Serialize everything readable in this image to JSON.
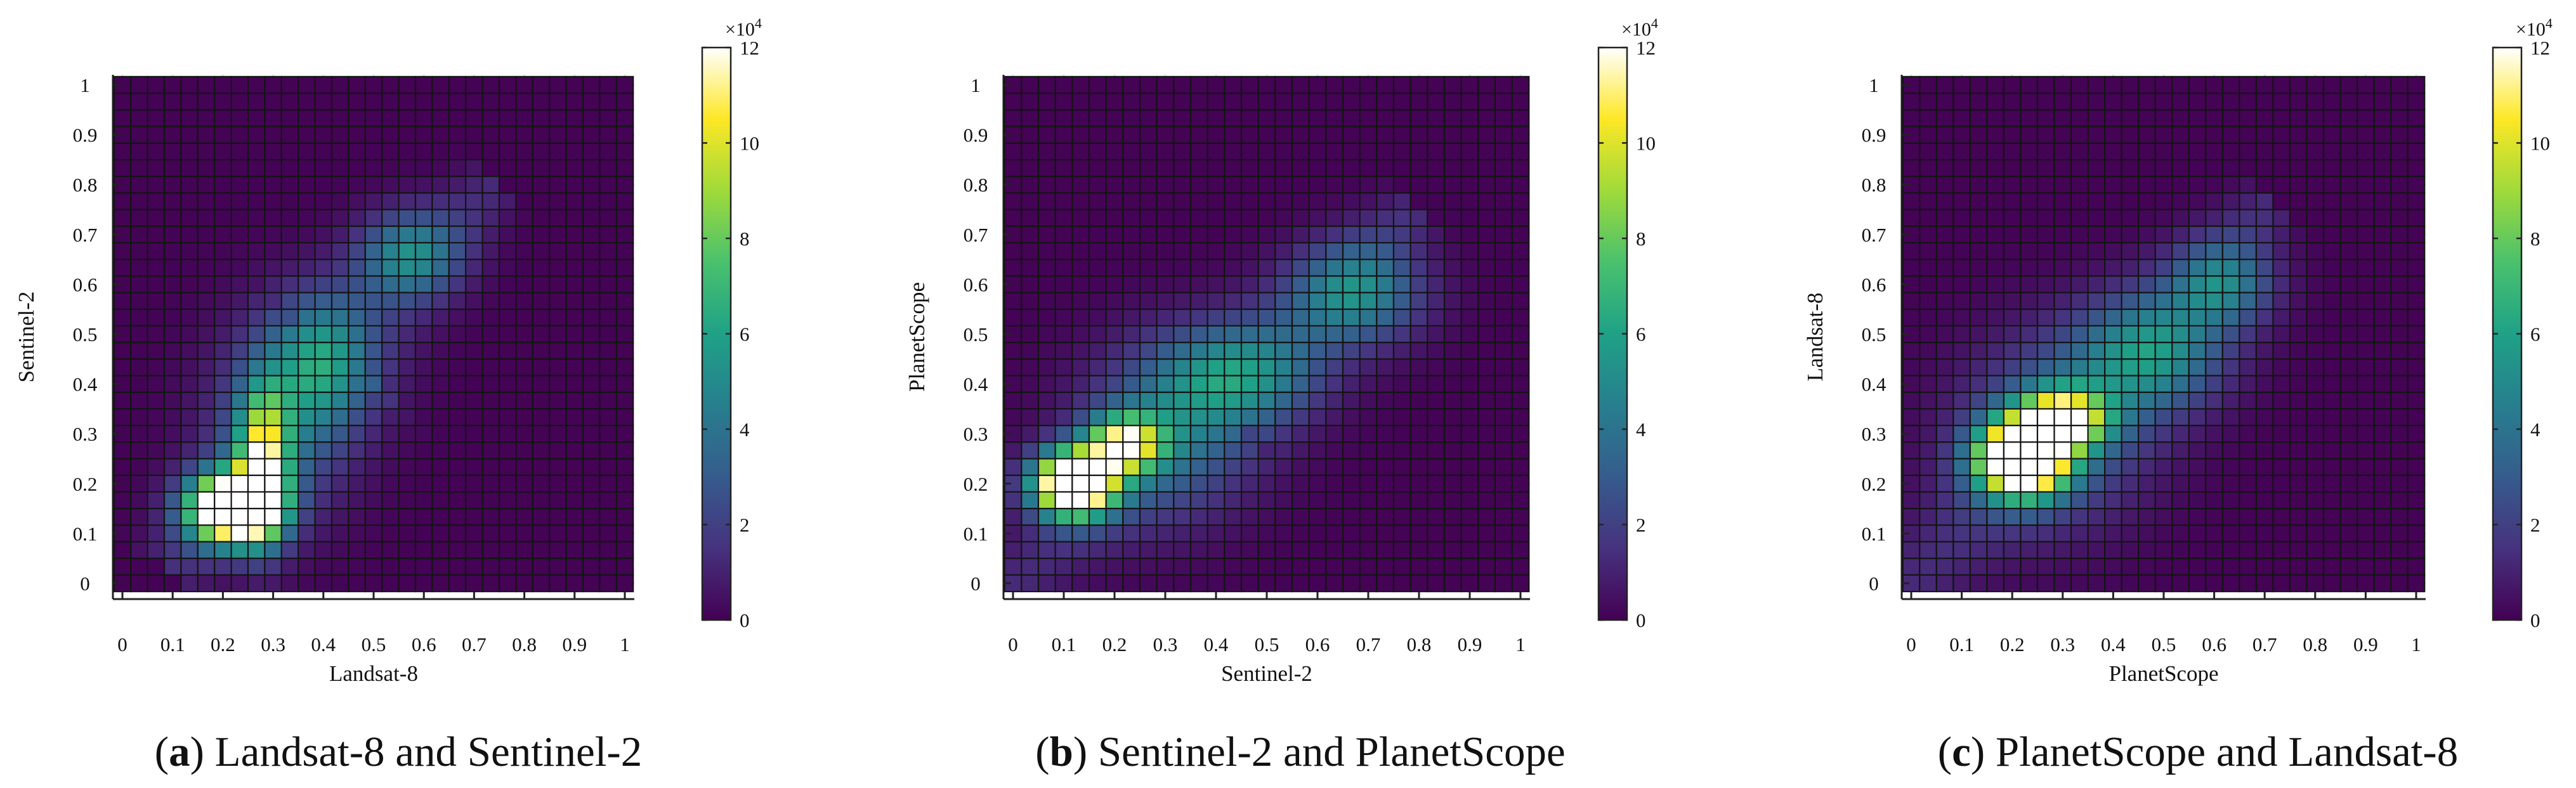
{
  "colorbar": {
    "multiplier_base": "×10",
    "multiplier_exp": "4",
    "ticks": [
      "0",
      "2",
      "4",
      "6",
      "8",
      "10",
      "12"
    ],
    "max": 120000
  },
  "colormap": [
    "#440154",
    "#46327e",
    "#365c8d",
    "#277f8e",
    "#1fa187",
    "#4ac16d",
    "#9fda3a",
    "#fde725",
    "#ffffff"
  ],
  "chart_data": [
    {
      "type": "heatmap",
      "panel_label": "a",
      "caption": "Landsat-8 and Sentinel-2",
      "xlabel": "Landsat-8",
      "ylabel": "Sentinel-2",
      "xticks": [
        "0",
        "0.1",
        "0.2",
        "0.3",
        "0.4",
        "0.5",
        "0.6",
        "0.7",
        "0.8",
        "0.9",
        "1"
      ],
      "yticks": [
        "0",
        "0.1",
        "0.2",
        "0.3",
        "0.4",
        "0.5",
        "0.6",
        "0.7",
        "0.8",
        "0.9",
        "1"
      ],
      "xlim": [
        0,
        1
      ],
      "ylim": [
        0,
        1
      ],
      "bin_width": 0.0333,
      "grid_size": 31,
      "background_count": 500,
      "density": {
        "points": [
          [
            0.22,
            0.15,
            170000,
            0.06,
            0.048
          ],
          [
            0.28,
            0.24,
            90000,
            0.035,
            0.1
          ],
          [
            0.4,
            0.45,
            40000,
            0.07,
            0.09
          ],
          [
            0.57,
            0.66,
            42000,
            0.07,
            0.06
          ],
          [
            0.32,
            0.33,
            25000,
            0.1,
            0.14
          ]
        ],
        "samples": 5,
        "spine": [
          [
            0.09,
            0.02,
            0.05
          ],
          [
            0.42,
            0.46,
            0.1
          ],
          [
            0.75,
            0.81,
            0.04
          ]
        ]
      },
      "max_count": 120000
    },
    {
      "type": "heatmap",
      "panel_label": "b",
      "caption": "Sentinel-2 and PlanetScope",
      "xlabel": "Sentinel-2",
      "ylabel": "PlanetScope",
      "xticks": [
        "0",
        "0.1",
        "0.2",
        "0.3",
        "0.4",
        "0.5",
        "0.6",
        "0.7",
        "0.8",
        "0.9",
        "1"
      ],
      "yticks": [
        "0",
        "0.1",
        "0.2",
        "0.3",
        "0.4",
        "0.5",
        "0.6",
        "0.7",
        "0.8",
        "0.9",
        "1"
      ],
      "xlim": [
        0,
        1
      ],
      "ylim": [
        0,
        1
      ],
      "bin_width": 0.0333,
      "grid_size": 31,
      "background_count": 500,
      "density": {
        "points": [
          [
            0.12,
            0.2,
            170000,
            0.055,
            0.045
          ],
          [
            0.22,
            0.28,
            95000,
            0.05,
            0.04
          ],
          [
            0.45,
            0.42,
            42000,
            0.11,
            0.07
          ],
          [
            0.68,
            0.58,
            45000,
            0.09,
            0.07
          ],
          [
            0.3,
            0.3,
            30000,
            0.12,
            0.12
          ]
        ],
        "samples": 5,
        "spine": [
          [
            0.0,
            0.0,
            0.05
          ],
          [
            0.4,
            0.37,
            0.1
          ],
          [
            0.8,
            0.76,
            0.04
          ]
        ]
      },
      "max_count": 120000
    },
    {
      "type": "heatmap",
      "panel_label": "c",
      "caption": "PlanetScope and Landsat-8",
      "xlabel": "PlanetScope",
      "ylabel": "Landsat-8",
      "xticks": [
        "0",
        "0.1",
        "0.2",
        "0.3",
        "0.4",
        "0.5",
        "0.6",
        "0.7",
        "0.8",
        "0.9",
        "1"
      ],
      "yticks": [
        "0",
        "0.1",
        "0.2",
        "0.3",
        "0.4",
        "0.5",
        "0.6",
        "0.7",
        "0.8",
        "0.9",
        "1"
      ],
      "xlim": [
        0,
        1
      ],
      "ylim": [
        0,
        1
      ],
      "bin_width": 0.0333,
      "grid_size": 31,
      "background_count": 500,
      "density": {
        "points": [
          [
            0.22,
            0.25,
            170000,
            0.06,
            0.05
          ],
          [
            0.3,
            0.33,
            100000,
            0.06,
            0.04
          ],
          [
            0.48,
            0.46,
            45000,
            0.1,
            0.08
          ],
          [
            0.62,
            0.6,
            40000,
            0.07,
            0.06
          ],
          [
            0.28,
            0.3,
            28000,
            0.13,
            0.13
          ]
        ],
        "samples": 5,
        "spine": [
          [
            0.0,
            0.0,
            0.06
          ],
          [
            0.37,
            0.4,
            0.1
          ],
          [
            0.72,
            0.77,
            0.04
          ]
        ]
      },
      "max_count": 120000
    }
  ]
}
